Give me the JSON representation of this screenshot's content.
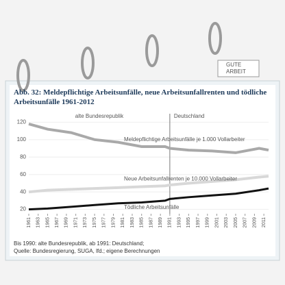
{
  "logo": [
    "GUTE",
    "ARBEIT"
  ],
  "chart_data": {
    "type": "line",
    "title": "Abb. 32: Meldepflichtige Arbeitsunfälle, neue Arbeitsunfallrenten und tödliche Arbeitsunfälle 1961-2012",
    "annotations": [
      "alte Bundesrepublik",
      "Deutschland"
    ],
    "notes": [
      "Bis 1990: alte Bundesrepublik, ab 1991: Deutschland;",
      "Quelle: Bundesregierung, SUGA, lfd.; eigene Berechnungen"
    ],
    "divider": 1991,
    "x": [
      1961,
      1965,
      1970,
      1975,
      1980,
      1985,
      1990,
      1991,
      1995,
      2000,
      2005,
      2010,
      2012
    ],
    "series": [
      {
        "name": "Meldepflichtige Arbeitsunfälle je 1.000 Vollarbeiter",
        "color": "#a9a9a9",
        "values": [
          118,
          112,
          108,
          100,
          97,
          92,
          92,
          90,
          88,
          87,
          85,
          90,
          88
        ]
      },
      {
        "name": "Neue Arbeitsunfallrenten je 10.000 Vollarbeiter",
        "color": "#d8d8d8",
        "values": [
          40,
          42,
          43,
          44,
          45,
          46,
          47,
          48,
          50,
          52,
          54,
          57,
          58
        ]
      },
      {
        "name": "Tödliche Arbeitsunfälle",
        "color": "#111111",
        "values": [
          20,
          21,
          23,
          25,
          27,
          28,
          30,
          32,
          34,
          36,
          38,
          42,
          44
        ]
      }
    ],
    "xlim": [
      1961,
      2012
    ],
    "xticks": [
      1961,
      1963,
      1965,
      1967,
      1969,
      1971,
      1973,
      1975,
      1977,
      1979,
      1981,
      1983,
      1985,
      1987,
      1989,
      1991,
      1993,
      1995,
      1997,
      1999,
      2001,
      2003,
      2005,
      2007,
      2009,
      2011
    ],
    "ylim": [
      15,
      125
    ],
    "yticks": [
      20,
      40,
      60,
      80,
      100,
      120
    ]
  }
}
